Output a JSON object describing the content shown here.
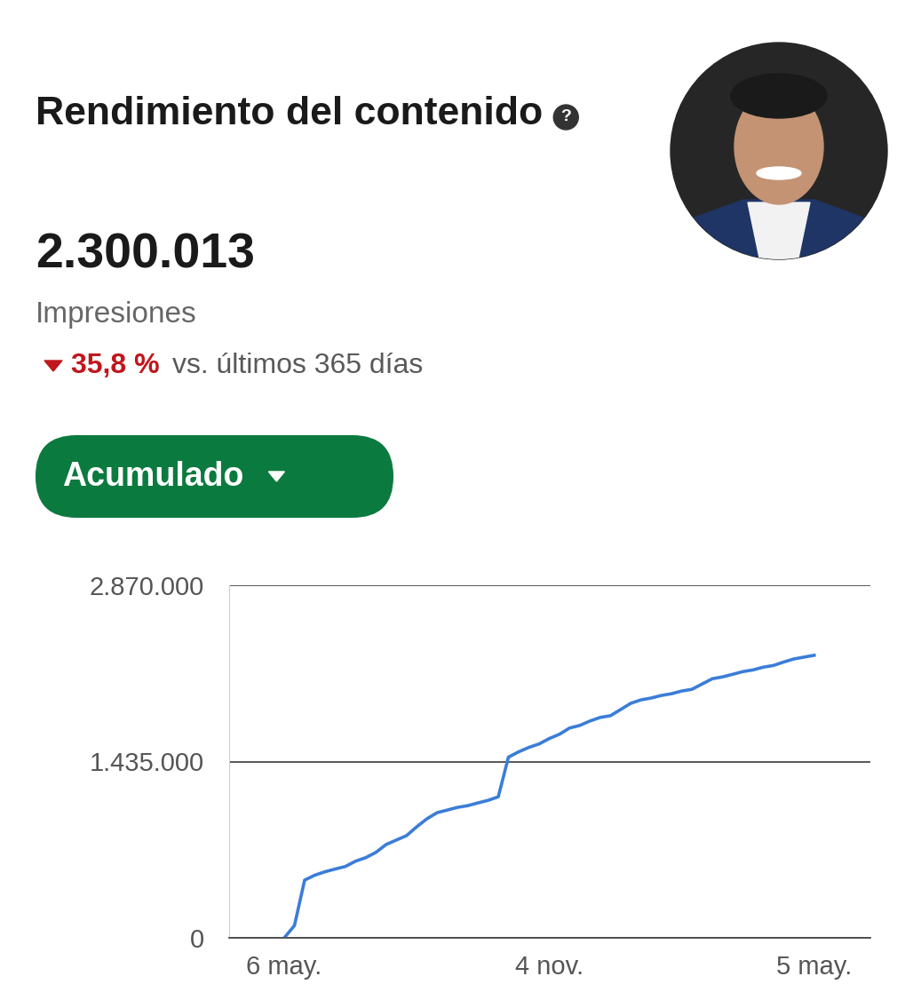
{
  "header": {
    "title": "Rendimiento del contenido",
    "help_icon": "?",
    "total": "2.300.013",
    "metric": "Impresiones",
    "change": "35,8 %",
    "change_direction": "down",
    "comparison": "vs. últimos 365 días",
    "button": "Acumulado"
  },
  "chart_data": {
    "type": "line",
    "categories": [
      "6 may.",
      null,
      null,
      null,
      null,
      null,
      null,
      null,
      null,
      null,
      null,
      null,
      null,
      null,
      null,
      null,
      null,
      null,
      null,
      null,
      null,
      null,
      null,
      null,
      null,
      null,
      "4 nov.",
      null,
      null,
      null,
      null,
      null,
      null,
      null,
      null,
      null,
      null,
      null,
      null,
      null,
      null,
      null,
      null,
      null,
      null,
      null,
      null,
      null,
      null,
      null,
      null,
      null,
      "5 may."
    ],
    "values": [
      0,
      100000,
      470000,
      510000,
      538000,
      560000,
      581000,
      624000,
      653000,
      696000,
      760000,
      796000,
      832000,
      904000,
      969000,
      1019000,
      1040000,
      1062000,
      1076000,
      1098000,
      1119000,
      1148000,
      1471000,
      1514000,
      1550000,
      1578000,
      1622000,
      1657000,
      1708000,
      1729000,
      1765000,
      1794000,
      1808000,
      1858000,
      1909000,
      1937000,
      1952000,
      1973000,
      1987000,
      2009000,
      2023000,
      2066000,
      2109000,
      2124000,
      2145000,
      2167000,
      2181000,
      2203000,
      2217000,
      2245000,
      2270000,
      2285000,
      2300000
    ],
    "color": "#3b7dd8",
    "ylim": [
      0,
      2870000
    ],
    "yticks": [
      0,
      {
        "value": 1435000,
        "label": "1.435.000"
      },
      {
        "value": 2870000,
        "label": "2.870.000"
      }
    ],
    "grid": true
  }
}
